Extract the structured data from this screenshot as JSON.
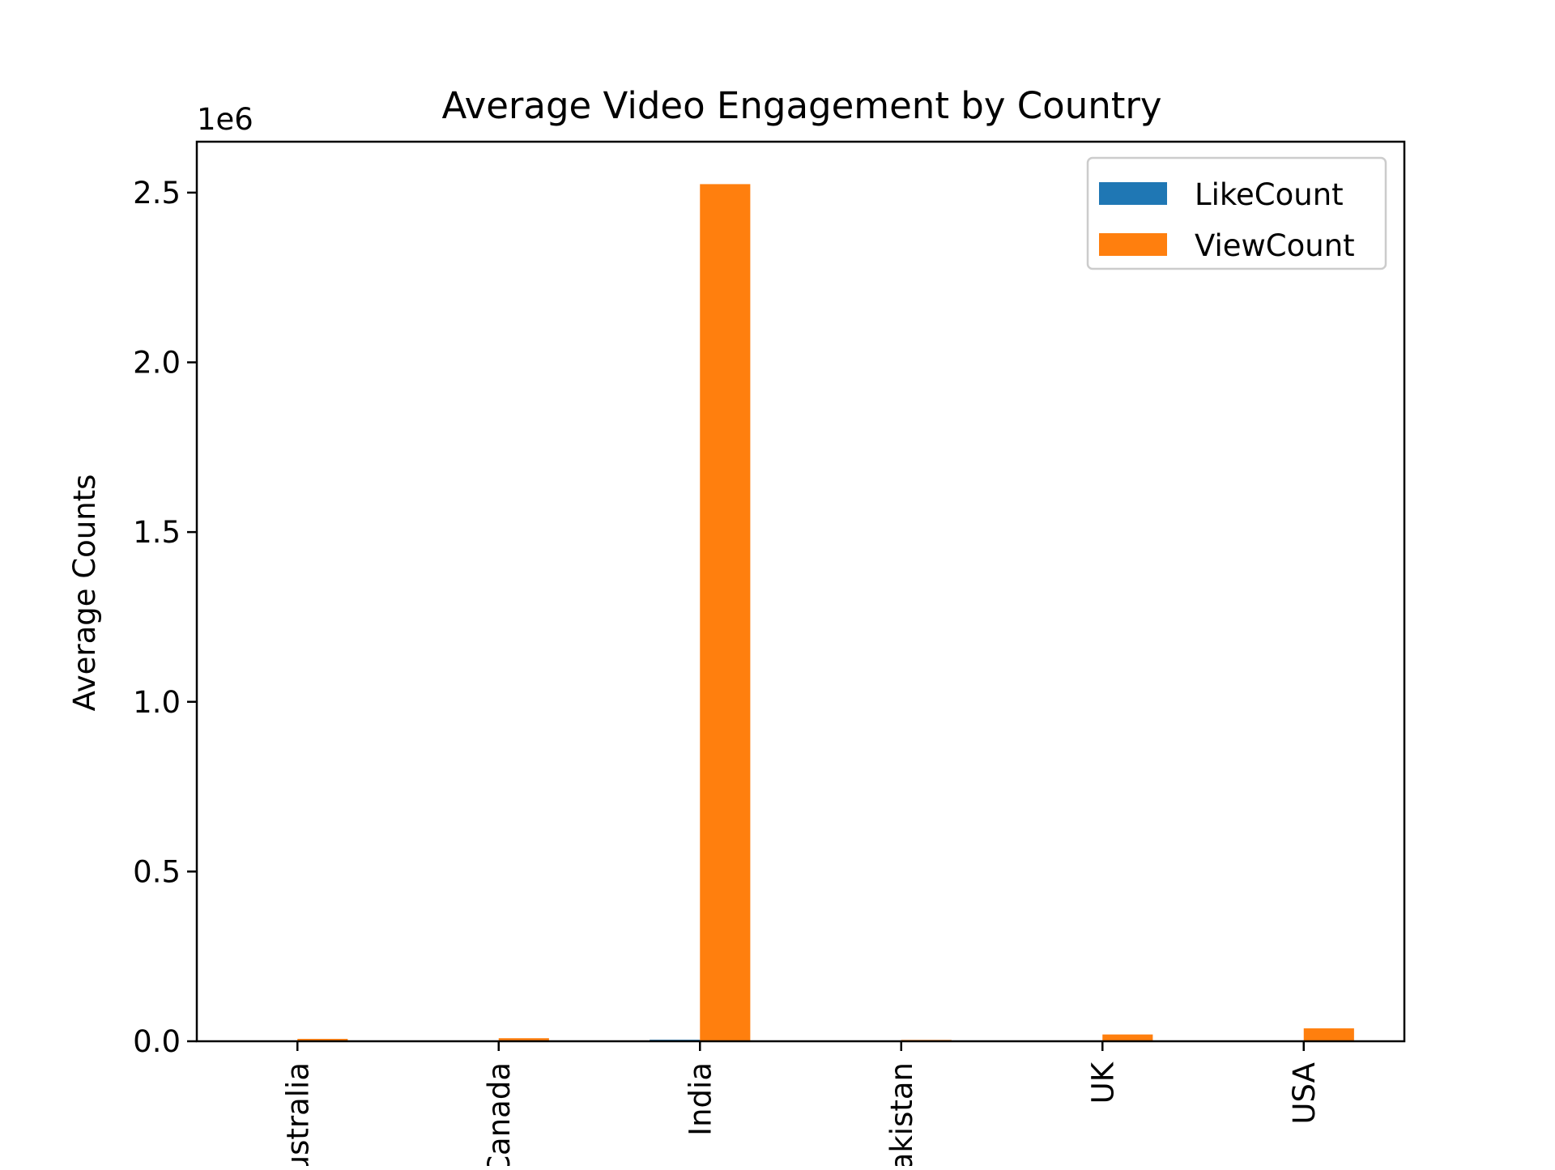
{
  "chart_data": {
    "type": "bar",
    "title": "Average Video Engagement by Country",
    "xlabel": "",
    "ylabel": "Average Counts",
    "y_offset_label": "1e6",
    "categories": [
      "Australia",
      "Canada",
      "India",
      "Pakistan",
      "UK",
      "USA"
    ],
    "ylim": [
      0,
      2650000
    ],
    "yticks": [
      0,
      500000,
      1000000,
      1500000,
      2000000,
      2500000
    ],
    "ytick_labels": [
      "0.0",
      "0.5",
      "1.0",
      "1.5",
      "2.0",
      "2.5"
    ],
    "grid": false,
    "legend_position": "top-right",
    "series": [
      {
        "name": "LikeCount",
        "color": "#1f77b4",
        "values": [
          350,
          600,
          4500,
          250,
          900,
          2000
        ]
      },
      {
        "name": "ViewCount",
        "color": "#ff7f0e",
        "values": [
          7000,
          9000,
          2525000,
          4000,
          20000,
          38000
        ]
      }
    ]
  }
}
